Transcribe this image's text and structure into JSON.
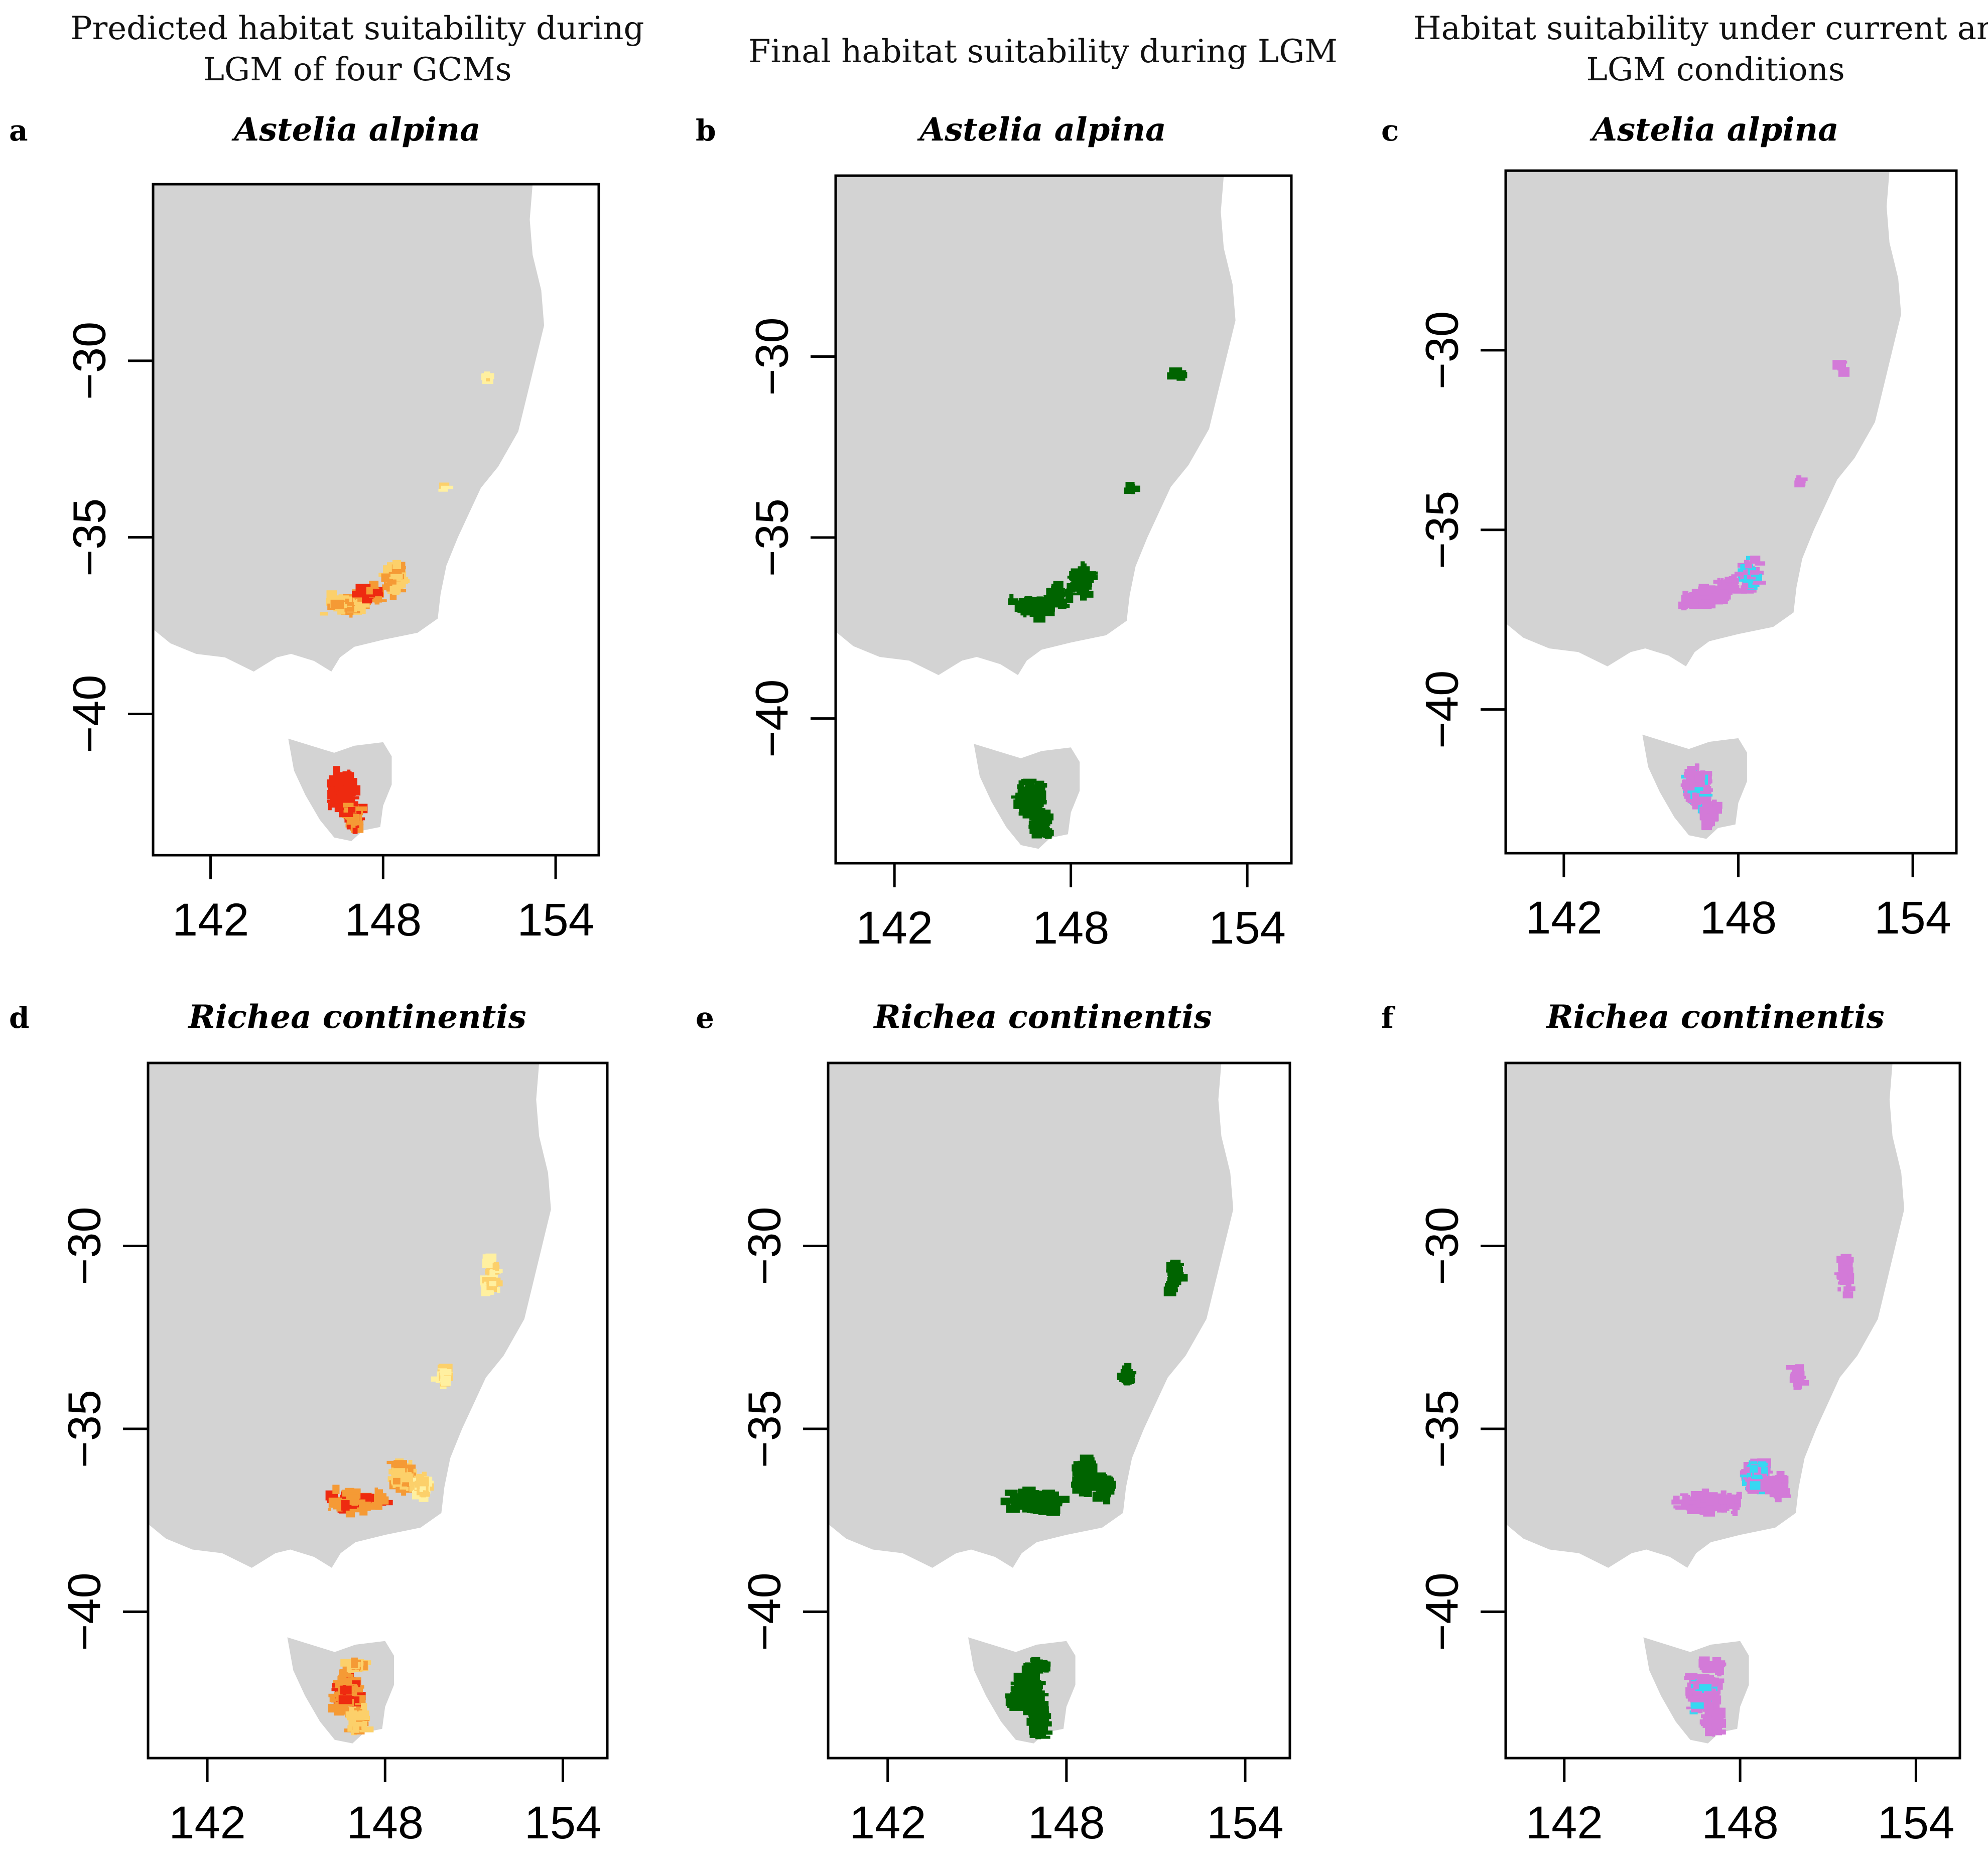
{
  "column_titles": [
    [
      "Predicted habitat suitability during",
      "LGM of four GCMs"
    ],
    [
      "Final habitat suitability during LGM"
    ],
    [
      "Habitat suitability under current and",
      "LGM conditions"
    ]
  ],
  "colors": {
    "land": "#d3d3d3",
    "frame": "#000000",
    "gcm_1": "#fff0a0",
    "gcm_2": "#fcd06a",
    "gcm_3": "#f59a35",
    "gcm_4": "#ee2a10",
    "final_lgm": "#006400",
    "current_only": "#d37ad8",
    "lgm_overlap": "#36d8f2"
  },
  "chart_data": [
    {
      "id": "a",
      "letter": "a",
      "species": "Astelia alpina",
      "type": "map",
      "title": "Predicted habitat suitability during LGM of four GCMs",
      "xlabel": "",
      "ylabel": "",
      "xticks": [
        "142",
        "148",
        "154"
      ],
      "yticks": [
        "−30",
        "−35",
        "−40"
      ],
      "xlim": [
        140,
        155.5
      ],
      "ylim": [
        -44,
        -25
      ],
      "style": "gcm"
    },
    {
      "id": "b",
      "letter": "b",
      "species": "Astelia alpina",
      "type": "map",
      "title": "Final habitat suitability during LGM",
      "xlabel": "",
      "ylabel": "",
      "xticks": [
        "142",
        "148",
        "154"
      ],
      "yticks": [
        "−30",
        "−35",
        "−40"
      ],
      "xlim": [
        140,
        155.5
      ],
      "ylim": [
        -44,
        -25
      ],
      "style": "final"
    },
    {
      "id": "c",
      "letter": "c",
      "species": "Astelia alpina",
      "type": "map",
      "title": "Habitat suitability under current and LGM conditions",
      "xlabel": "",
      "ylabel": "",
      "xticks": [
        "142",
        "148",
        "154"
      ],
      "yticks": [
        "−30",
        "−35",
        "−40"
      ],
      "xlim": [
        140,
        155.5
      ],
      "ylim": [
        -44,
        -25
      ],
      "style": "overlap"
    },
    {
      "id": "d",
      "letter": "d",
      "species": "Richea continentis",
      "type": "map",
      "title": "Predicted habitat suitability during LGM of four GCMs",
      "xlabel": "",
      "ylabel": "",
      "xticks": [
        "142",
        "148",
        "154"
      ],
      "yticks": [
        "−30",
        "−35",
        "−40"
      ],
      "xlim": [
        140,
        155.5
      ],
      "ylim": [
        -44,
        -25
      ],
      "style": "gcm"
    },
    {
      "id": "e",
      "letter": "e",
      "species": "Richea continentis",
      "type": "map",
      "title": "Final habitat suitability during LGM",
      "xlabel": "",
      "ylabel": "",
      "xticks": [
        "142",
        "148",
        "154"
      ],
      "yticks": [
        "−30",
        "−35",
        "−40"
      ],
      "xlim": [
        140,
        155.5
      ],
      "ylim": [
        -44,
        -25
      ],
      "style": "final"
    },
    {
      "id": "f",
      "letter": "f",
      "species": "Richea continentis",
      "type": "map",
      "title": "Habitat suitability under current and LGM conditions",
      "xlabel": "",
      "ylabel": "",
      "xticks": [
        "142",
        "148",
        "154"
      ],
      "yticks": [
        "−30",
        "−35",
        "−40"
      ],
      "xlim": [
        140,
        155.5
      ],
      "ylim": [
        -44,
        -25
      ],
      "style": "overlap"
    }
  ]
}
